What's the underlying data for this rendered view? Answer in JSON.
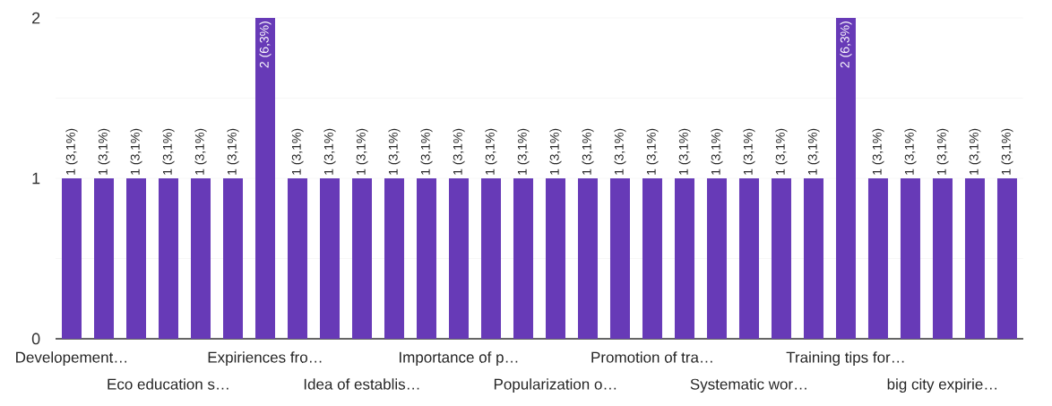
{
  "chart_data": {
    "type": "bar",
    "categories": [
      "Developement…",
      null,
      null,
      "Eco education s…",
      null,
      null,
      "Expiriences fro…",
      null,
      null,
      "Idea of establis…",
      null,
      null,
      "Importance of p…",
      null,
      null,
      "Popularization o…",
      null,
      null,
      "Promotion of tra…",
      null,
      null,
      "Systematic wor…",
      null,
      null,
      "Training tips for…",
      null,
      null,
      "big city expirie…",
      null,
      null
    ],
    "values": [
      1,
      1,
      1,
      1,
      1,
      1,
      2,
      1,
      1,
      1,
      1,
      1,
      1,
      1,
      1,
      1,
      1,
      1,
      1,
      1,
      1,
      1,
      1,
      1,
      2,
      1,
      1,
      1,
      1,
      1
    ],
    "value_labels": [
      "1 (3,1%)",
      "1 (3,1%)",
      "1 (3,1%)",
      "1 (3,1%)",
      "1 (3,1%)",
      "1 (3,1%)",
      "2 (6,3%)",
      "1 (3,1%)",
      "1 (3,1%)",
      "1 (3,1%)",
      "1 (3,1%)",
      "1 (3,1%)",
      "1 (3,1%)",
      "1 (3,1%)",
      "1 (3,1%)",
      "1 (3,1%)",
      "1 (3,1%)",
      "1 (3,1%)",
      "1 (3,1%)",
      "1 (3,1%)",
      "1 (3,1%)",
      "1 (3,1%)",
      "1 (3,1%)",
      "1 (3,1%)",
      "2 (6,3%)",
      "1 (3,1%)",
      "1 (3,1%)",
      "1 (3,1%)",
      "1 (3,1%)",
      "1 (3,1%)"
    ],
    "color": "#673ab7",
    "ylim": [
      0,
      2
    ],
    "yticks": [
      0,
      {
        "value": 0.5,
        "label": null
      },
      1,
      {
        "value": 1.5,
        "label": null
      },
      2
    ],
    "grid": "y"
  }
}
